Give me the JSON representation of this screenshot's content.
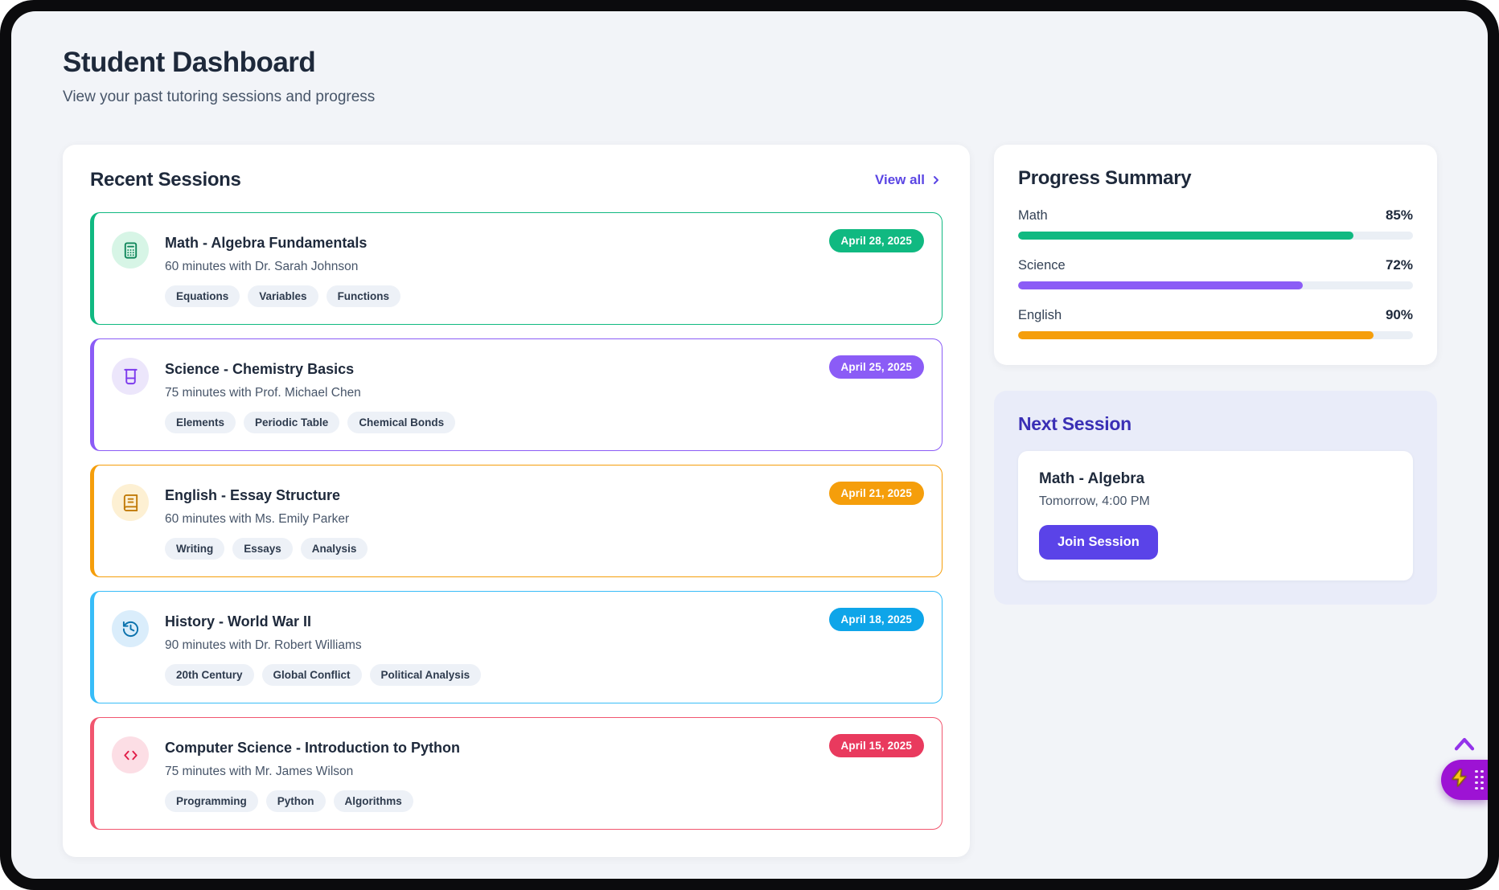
{
  "page": {
    "title": "Student Dashboard",
    "subtitle": "View your past tutoring sessions and progress"
  },
  "recent": {
    "heading": "Recent Sessions",
    "view_all_label": "View all",
    "sessions": [
      {
        "icon": "calculator-icon",
        "border_color": "#10b981",
        "badge_color": "#10b981",
        "icon_bg": "#d7f5e6",
        "icon_color": "#11875c",
        "title": "Math - Algebra Fundamentals",
        "meta": "60 minutes with Dr. Sarah Johnson",
        "tags": [
          "Equations",
          "Variables",
          "Functions"
        ],
        "date": "April 28, 2025"
      },
      {
        "icon": "beaker-icon",
        "border_color": "#8b5cf6",
        "badge_color": "#8b5cf6",
        "icon_bg": "#ece6fb",
        "icon_color": "#7c3aed",
        "title": "Science - Chemistry Basics",
        "meta": "75 minutes with Prof. Michael Chen",
        "tags": [
          "Elements",
          "Periodic Table",
          "Chemical Bonds"
        ],
        "date": "April 25, 2025"
      },
      {
        "icon": "book-icon",
        "border_color": "#f59e0b",
        "badge_color": "#f59e0b",
        "icon_bg": "#fdf0d3",
        "icon_color": "#c17a08",
        "title": "English - Essay Structure",
        "meta": "60 minutes with Ms. Emily Parker",
        "tags": [
          "Writing",
          "Essays",
          "Analysis"
        ],
        "date": "April 21, 2025"
      },
      {
        "icon": "history-icon",
        "border_color": "#38bdf8",
        "badge_color": "#0ea5e9",
        "icon_bg": "#daedfb",
        "icon_color": "#0b72ad",
        "title": "History - World War II",
        "meta": "90 minutes with Dr. Robert Williams",
        "tags": [
          "20th Century",
          "Global Conflict",
          "Political Analysis"
        ],
        "date": "April 18, 2025"
      },
      {
        "icon": "code-icon",
        "border_color": "#f1566f",
        "badge_color": "#e93a5e",
        "icon_bg": "#fcdee5",
        "icon_color": "#e11d48",
        "title": "Computer Science - Introduction to Python",
        "meta": "75 minutes with Mr. James Wilson",
        "tags": [
          "Programming",
          "Python",
          "Algorithms"
        ],
        "date": "April 15, 2025"
      }
    ]
  },
  "progress": {
    "heading": "Progress Summary",
    "items": [
      {
        "label": "Math",
        "pct": "85%",
        "value": 85,
        "color": "#10b981"
      },
      {
        "label": "Science",
        "pct": "72%",
        "value": 72,
        "color": "#8b5cf6"
      },
      {
        "label": "English",
        "pct": "90%",
        "value": 90,
        "color": "#f59e0b"
      }
    ]
  },
  "next_session": {
    "heading": "Next Session",
    "title": "Math - Algebra",
    "time": "Tomorrow, 4:00 PM",
    "button_label": "Join Session"
  },
  "floating": {
    "scroll_top_icon": "chevron-up-icon",
    "assistant_icon": "lightning-icon",
    "accent_color": "#9d13d4"
  }
}
